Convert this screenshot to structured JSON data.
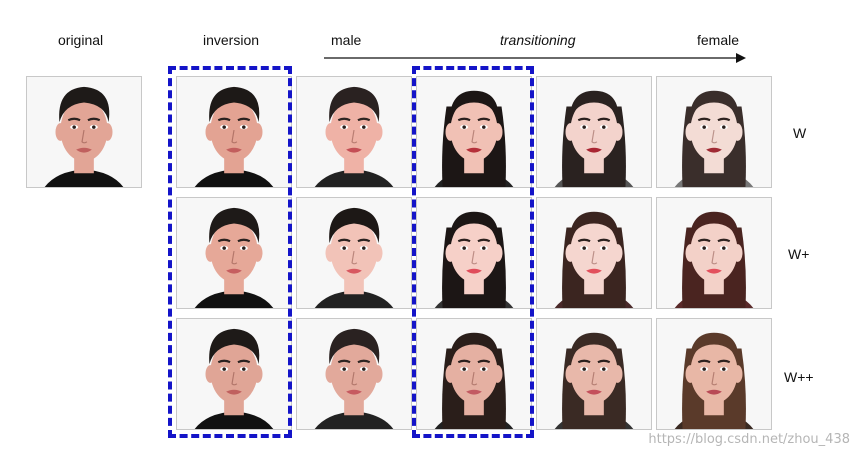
{
  "headers": {
    "original": "original",
    "inversion": "inversion",
    "male": "male",
    "transitioning": "transitioning",
    "female": "female"
  },
  "rows": [
    {
      "label": "W"
    },
    {
      "label": "W+"
    },
    {
      "label": "W++"
    }
  ],
  "colors": {
    "dash_border": "#1414c8",
    "arrow": "#111111"
  },
  "watermark": "https://blog.csdn.net/zhou_438",
  "faces": [
    {
      "id": "orig",
      "skin": "#e2a596",
      "hair": "#1e1a18",
      "long": false,
      "lip": "#c0605e",
      "brow": "#2a2220",
      "shirt": "#111"
    },
    {
      "id": "r1c1",
      "skin": "#e3a393",
      "hair": "#1d1917",
      "long": false,
      "lip": "#c25e5d",
      "brow": "#2a2220",
      "shirt": "#111"
    },
    {
      "id": "r1c2",
      "skin": "#efb2a6",
      "hair": "#2a2221",
      "long": false,
      "lip": "#c44e55",
      "brow": "#2e2522",
      "shirt": "#222"
    },
    {
      "id": "r1c3",
      "skin": "#f1c1b5",
      "hair": "#1c1615",
      "long": true,
      "lip": "#b5303a",
      "brow": "#2b201e",
      "shirt": "#222"
    },
    {
      "id": "r1c4",
      "skin": "#f3d3cc",
      "hair": "#2a2220",
      "long": true,
      "lip": "#a92532",
      "brow": "#2a201e",
      "shirt": "#555"
    },
    {
      "id": "r1c5",
      "skin": "#f3dcd5",
      "hair": "#3a2e2b",
      "long": true,
      "lip": "#a02a34",
      "brow": "#2e2320",
      "shirt": "#777"
    },
    {
      "id": "r2c1",
      "skin": "#e6a898",
      "hair": "#1e1a18",
      "long": false,
      "lip": "#c65e5f",
      "brow": "#2a2220",
      "shirt": "#111"
    },
    {
      "id": "r2c2",
      "skin": "#f2c3b8",
      "hair": "#1d1816",
      "long": false,
      "lip": "#d85860",
      "brow": "#2a2220",
      "shirt": "#222"
    },
    {
      "id": "r2c3",
      "skin": "#f6d0c8",
      "hair": "#1c1615",
      "long": true,
      "lip": "#e04c5a",
      "brow": "#2b201e",
      "shirt": "#333"
    },
    {
      "id": "r2c4",
      "skin": "#f5d6cf",
      "hair": "#3b2520",
      "long": true,
      "lip": "#e2505c",
      "brow": "#2a201e",
      "shirt": "#4a2a2a"
    },
    {
      "id": "r2c5",
      "skin": "#f3d1c8",
      "hair": "#4a2420",
      "long": true,
      "lip": "#e3505d",
      "brow": "#2e2320",
      "shirt": "#5a2a2a"
    },
    {
      "id": "r3c1",
      "skin": "#e0a596",
      "hair": "#1e1a18",
      "long": false,
      "lip": "#c0605e",
      "brow": "#2a2220",
      "shirt": "#111"
    },
    {
      "id": "r3c2",
      "skin": "#e2a99b",
      "hair": "#2a2221",
      "long": false,
      "lip": "#c65a60",
      "brow": "#2e2522",
      "shirt": "#222"
    },
    {
      "id": "r3c3",
      "skin": "#e5b0a2",
      "hair": "#2a1e1a",
      "long": true,
      "lip": "#c25a62",
      "brow": "#2b201e",
      "shirt": "#222"
    },
    {
      "id": "r3c4",
      "skin": "#e8b8aa",
      "hair": "#3a2a24",
      "long": true,
      "lip": "#c4505c",
      "brow": "#2a201e",
      "shirt": "#333"
    },
    {
      "id": "r3c5",
      "skin": "#e8b7a6",
      "hair": "#5a3a2a",
      "long": true,
      "lip": "#b84a56",
      "brow": "#2e2320",
      "shirt": "#3a2a22"
    }
  ]
}
